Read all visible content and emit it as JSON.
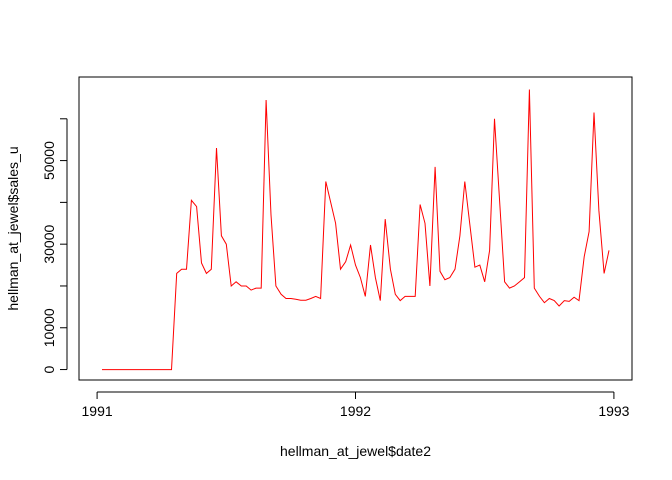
{
  "chart_data": {
    "type": "line",
    "title": "",
    "xlabel": "hellman_at_jewel$date2",
    "ylabel": "hellman_at_jewel$sales_u",
    "x_ticks": [
      1991,
      1992,
      1993
    ],
    "y_ticks": [
      0,
      10000,
      30000,
      50000
    ],
    "xlim": [
      1990.93,
      1993.07
    ],
    "ylim": [
      -2500,
      70000
    ],
    "line_color": "#ff0000",
    "grid": false,
    "series": [
      {
        "x": [
          1991.019,
          1991.038,
          1991.058,
          1991.077,
          1991.096,
          1991.115,
          1991.135,
          1991.154,
          1991.173,
          1991.192,
          1991.212,
          1991.231,
          1991.25,
          1991.269,
          1991.288,
          1991.308,
          1991.327,
          1991.346,
          1991.365,
          1991.385,
          1991.404,
          1991.423,
          1991.442,
          1991.462,
          1991.481,
          1991.5,
          1991.519,
          1991.538,
          1991.558,
          1991.577,
          1991.596,
          1991.615,
          1991.635,
          1991.654,
          1991.673,
          1991.692,
          1991.712,
          1991.731,
          1991.75,
          1991.769,
          1991.788,
          1991.808,
          1991.827,
          1991.846,
          1991.865,
          1991.885,
          1991.904,
          1991.923,
          1991.942,
          1991.962,
          1991.981,
          1992.0,
          1992.019,
          1992.038,
          1992.058,
          1992.077,
          1992.096,
          1992.115,
          1992.135,
          1992.154,
          1992.173,
          1992.192,
          1992.212,
          1992.231,
          1992.25,
          1992.269,
          1992.288,
          1992.308,
          1992.327,
          1992.346,
          1992.365,
          1992.385,
          1992.404,
          1992.423,
          1992.442,
          1992.462,
          1992.481,
          1992.5,
          1992.519,
          1992.538,
          1992.558,
          1992.577,
          1992.596,
          1992.615,
          1992.635,
          1992.654,
          1992.673,
          1992.692,
          1992.712,
          1992.731,
          1992.75,
          1992.769,
          1992.788,
          1992.808,
          1992.827,
          1992.846,
          1992.865,
          1992.885,
          1992.904,
          1992.923,
          1992.942,
          1992.962,
          1992.981
        ],
        "values": [
          0,
          0,
          0,
          0,
          0,
          0,
          0,
          0,
          0,
          0,
          0,
          0,
          0,
          0,
          0,
          23000,
          24000,
          24000,
          40500,
          39000,
          25500,
          23000,
          24000,
          53000,
          32000,
          30000,
          20000,
          21000,
          20000,
          20000,
          19000,
          19500,
          19500,
          64500,
          37000,
          20000,
          18000,
          17000,
          17000,
          16800,
          16600,
          16600,
          17000,
          17500,
          17000,
          45000,
          40000,
          35000,
          24000,
          25800,
          29800,
          25000,
          22000,
          17500,
          29800,
          22000,
          16500,
          36000,
          24000,
          18000,
          16500,
          17500,
          17500,
          17500,
          39500,
          35000,
          20000,
          48500,
          23500,
          21500,
          22000,
          24000,
          32000,
          45000,
          35000,
          24500,
          25000,
          21000,
          28500,
          60000,
          40000,
          21000,
          19500,
          20000,
          21000,
          22000,
          67000,
          19500,
          17500,
          16000,
          17000,
          16500,
          15200,
          16500,
          16300,
          17300,
          16500,
          27000,
          33000,
          61500,
          38000,
          23000,
          28500
        ]
      }
    ]
  }
}
